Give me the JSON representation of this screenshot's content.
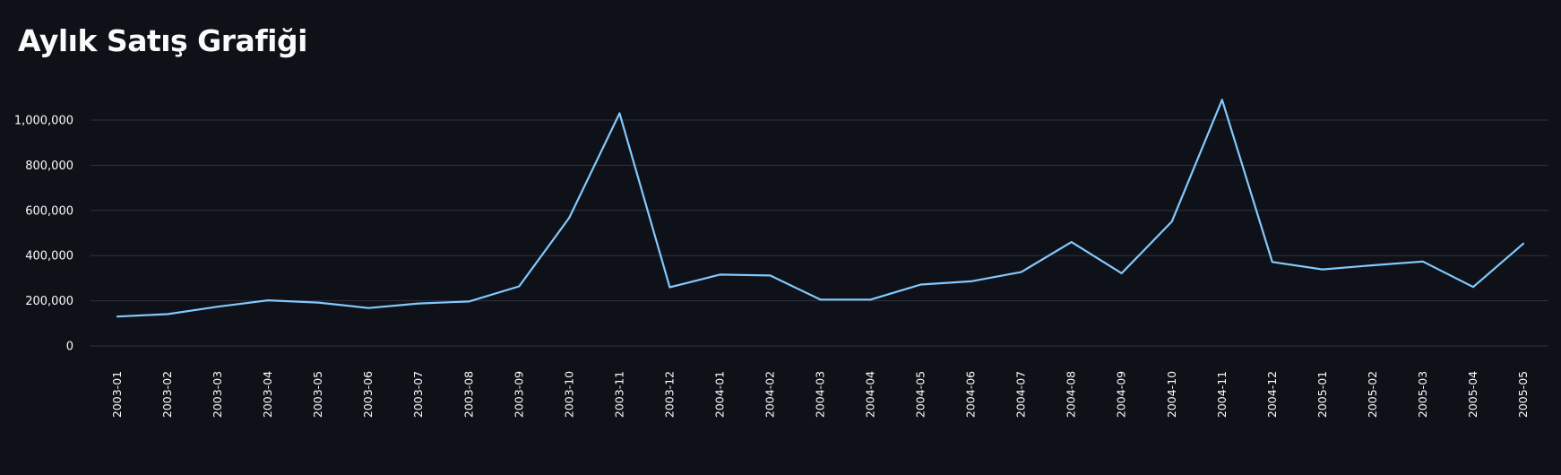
{
  "page": {
    "title": "Aylık Satış Grafiği"
  },
  "colors": {
    "background": "#0e1117",
    "line": "#83c9ff",
    "grid": "#31333f",
    "text": "#fafafa"
  },
  "chart_data": {
    "type": "line",
    "title": "",
    "xlabel": "",
    "ylabel": "",
    "grid": true,
    "ylim": [
      0,
      1000000
    ],
    "y_ticks": [
      0,
      200000,
      400000,
      600000,
      800000,
      1000000
    ],
    "y_tick_labels": [
      "0",
      "200,000",
      "400,000",
      "600,000",
      "800,000",
      "1,000,000"
    ],
    "categories": [
      "2003-01",
      "2003-02",
      "2003-03",
      "2003-04",
      "2003-05",
      "2003-06",
      "2003-07",
      "2003-08",
      "2003-09",
      "2003-10",
      "2003-11",
      "2003-12",
      "2004-01",
      "2004-02",
      "2004-03",
      "2004-04",
      "2004-05",
      "2004-06",
      "2004-07",
      "2004-08",
      "2004-09",
      "2004-10",
      "2004-11",
      "2004-12",
      "2005-01",
      "2005-02",
      "2005-03",
      "2005-04",
      "2005-05"
    ],
    "series": [
      {
        "values": [
          130000,
          141000,
          174000,
          202000,
          192000,
          168000,
          188000,
          197000,
          264000,
          568000,
          1030000,
          260000,
          316000,
          312000,
          205000,
          205000,
          272000,
          286000,
          327000,
          460000,
          322000,
          551000,
          1090000,
          372000,
          339000,
          357000,
          374000,
          261000,
          453000
        ]
      }
    ]
  }
}
